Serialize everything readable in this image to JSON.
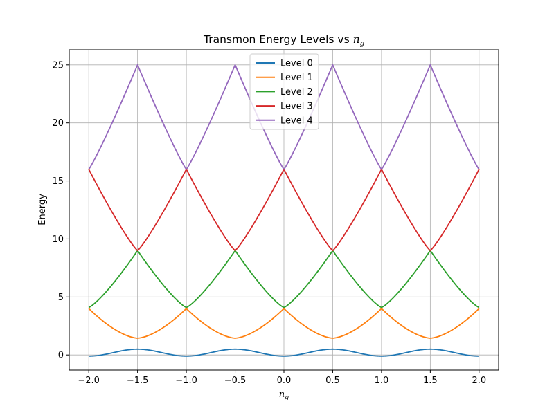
{
  "chart_data": {
    "type": "line",
    "title_main": "Transmon Energy Levels vs ",
    "title_var": "n",
    "title_sub": "g",
    "xlabel_var": "n",
    "xlabel_sub": "g",
    "ylabel": "Energy",
    "xlim": [
      -2.2,
      2.2
    ],
    "ylim": [
      -1.3,
      26.3
    ],
    "x_ticks": [
      -2.0,
      -1.5,
      -1.0,
      -0.5,
      0.0,
      0.5,
      1.0,
      1.5,
      2.0
    ],
    "x_tick_labels": [
      "−2.0",
      "−1.5",
      "−1.0",
      "−0.5",
      "0.0",
      "0.5",
      "1.0",
      "1.5",
      "2.0"
    ],
    "y_ticks": [
      0,
      5,
      10,
      15,
      20,
      25
    ],
    "y_tick_labels": [
      "0",
      "5",
      "10",
      "15",
      "20",
      "25"
    ],
    "grid": true,
    "legend_position": "top-center",
    "x": [
      -2.0,
      -1.75,
      -1.5,
      -1.25,
      -1.0,
      -0.75,
      -0.5,
      -0.25,
      0.0,
      0.25,
      0.5,
      0.75,
      1.0,
      1.25,
      1.5,
      1.75,
      2.0
    ],
    "series": [
      {
        "name": "Level 0",
        "color": "#1f77b4",
        "values": [
          -0.1,
          0.15,
          0.5,
          0.15,
          -0.1,
          0.15,
          0.5,
          0.15,
          -0.1,
          0.15,
          0.5,
          0.15,
          -0.1,
          0.15,
          0.5,
          0.15,
          -0.1
        ]
      },
      {
        "name": "Level 1",
        "color": "#ff7f0e",
        "values": [
          4.0,
          2.3,
          1.45,
          2.3,
          4.0,
          2.3,
          1.45,
          2.3,
          4.0,
          2.3,
          1.45,
          2.3,
          4.0,
          2.3,
          1.45,
          2.3,
          4.0
        ]
      },
      {
        "name": "Level 2",
        "color": "#2ca02c",
        "values": [
          4.1,
          6.3,
          9.0,
          6.3,
          4.1,
          6.3,
          9.0,
          6.3,
          4.1,
          6.3,
          9.0,
          6.3,
          4.1,
          6.3,
          9.0,
          6.3,
          4.1
        ]
      },
      {
        "name": "Level 3",
        "color": "#d62728",
        "values": [
          16.0,
          12.3,
          9.0,
          12.3,
          16.0,
          12.3,
          9.0,
          12.3,
          16.0,
          12.3,
          9.0,
          12.3,
          16.0,
          12.3,
          9.0,
          12.3,
          16.0
        ]
      },
      {
        "name": "Level 4",
        "color": "#9467bd",
        "values": [
          16.0,
          20.3,
          25.0,
          20.3,
          16.0,
          20.3,
          25.0,
          20.3,
          16.0,
          20.3,
          25.0,
          20.3,
          16.0,
          20.3,
          25.0,
          20.3,
          16.0
        ]
      }
    ]
  }
}
